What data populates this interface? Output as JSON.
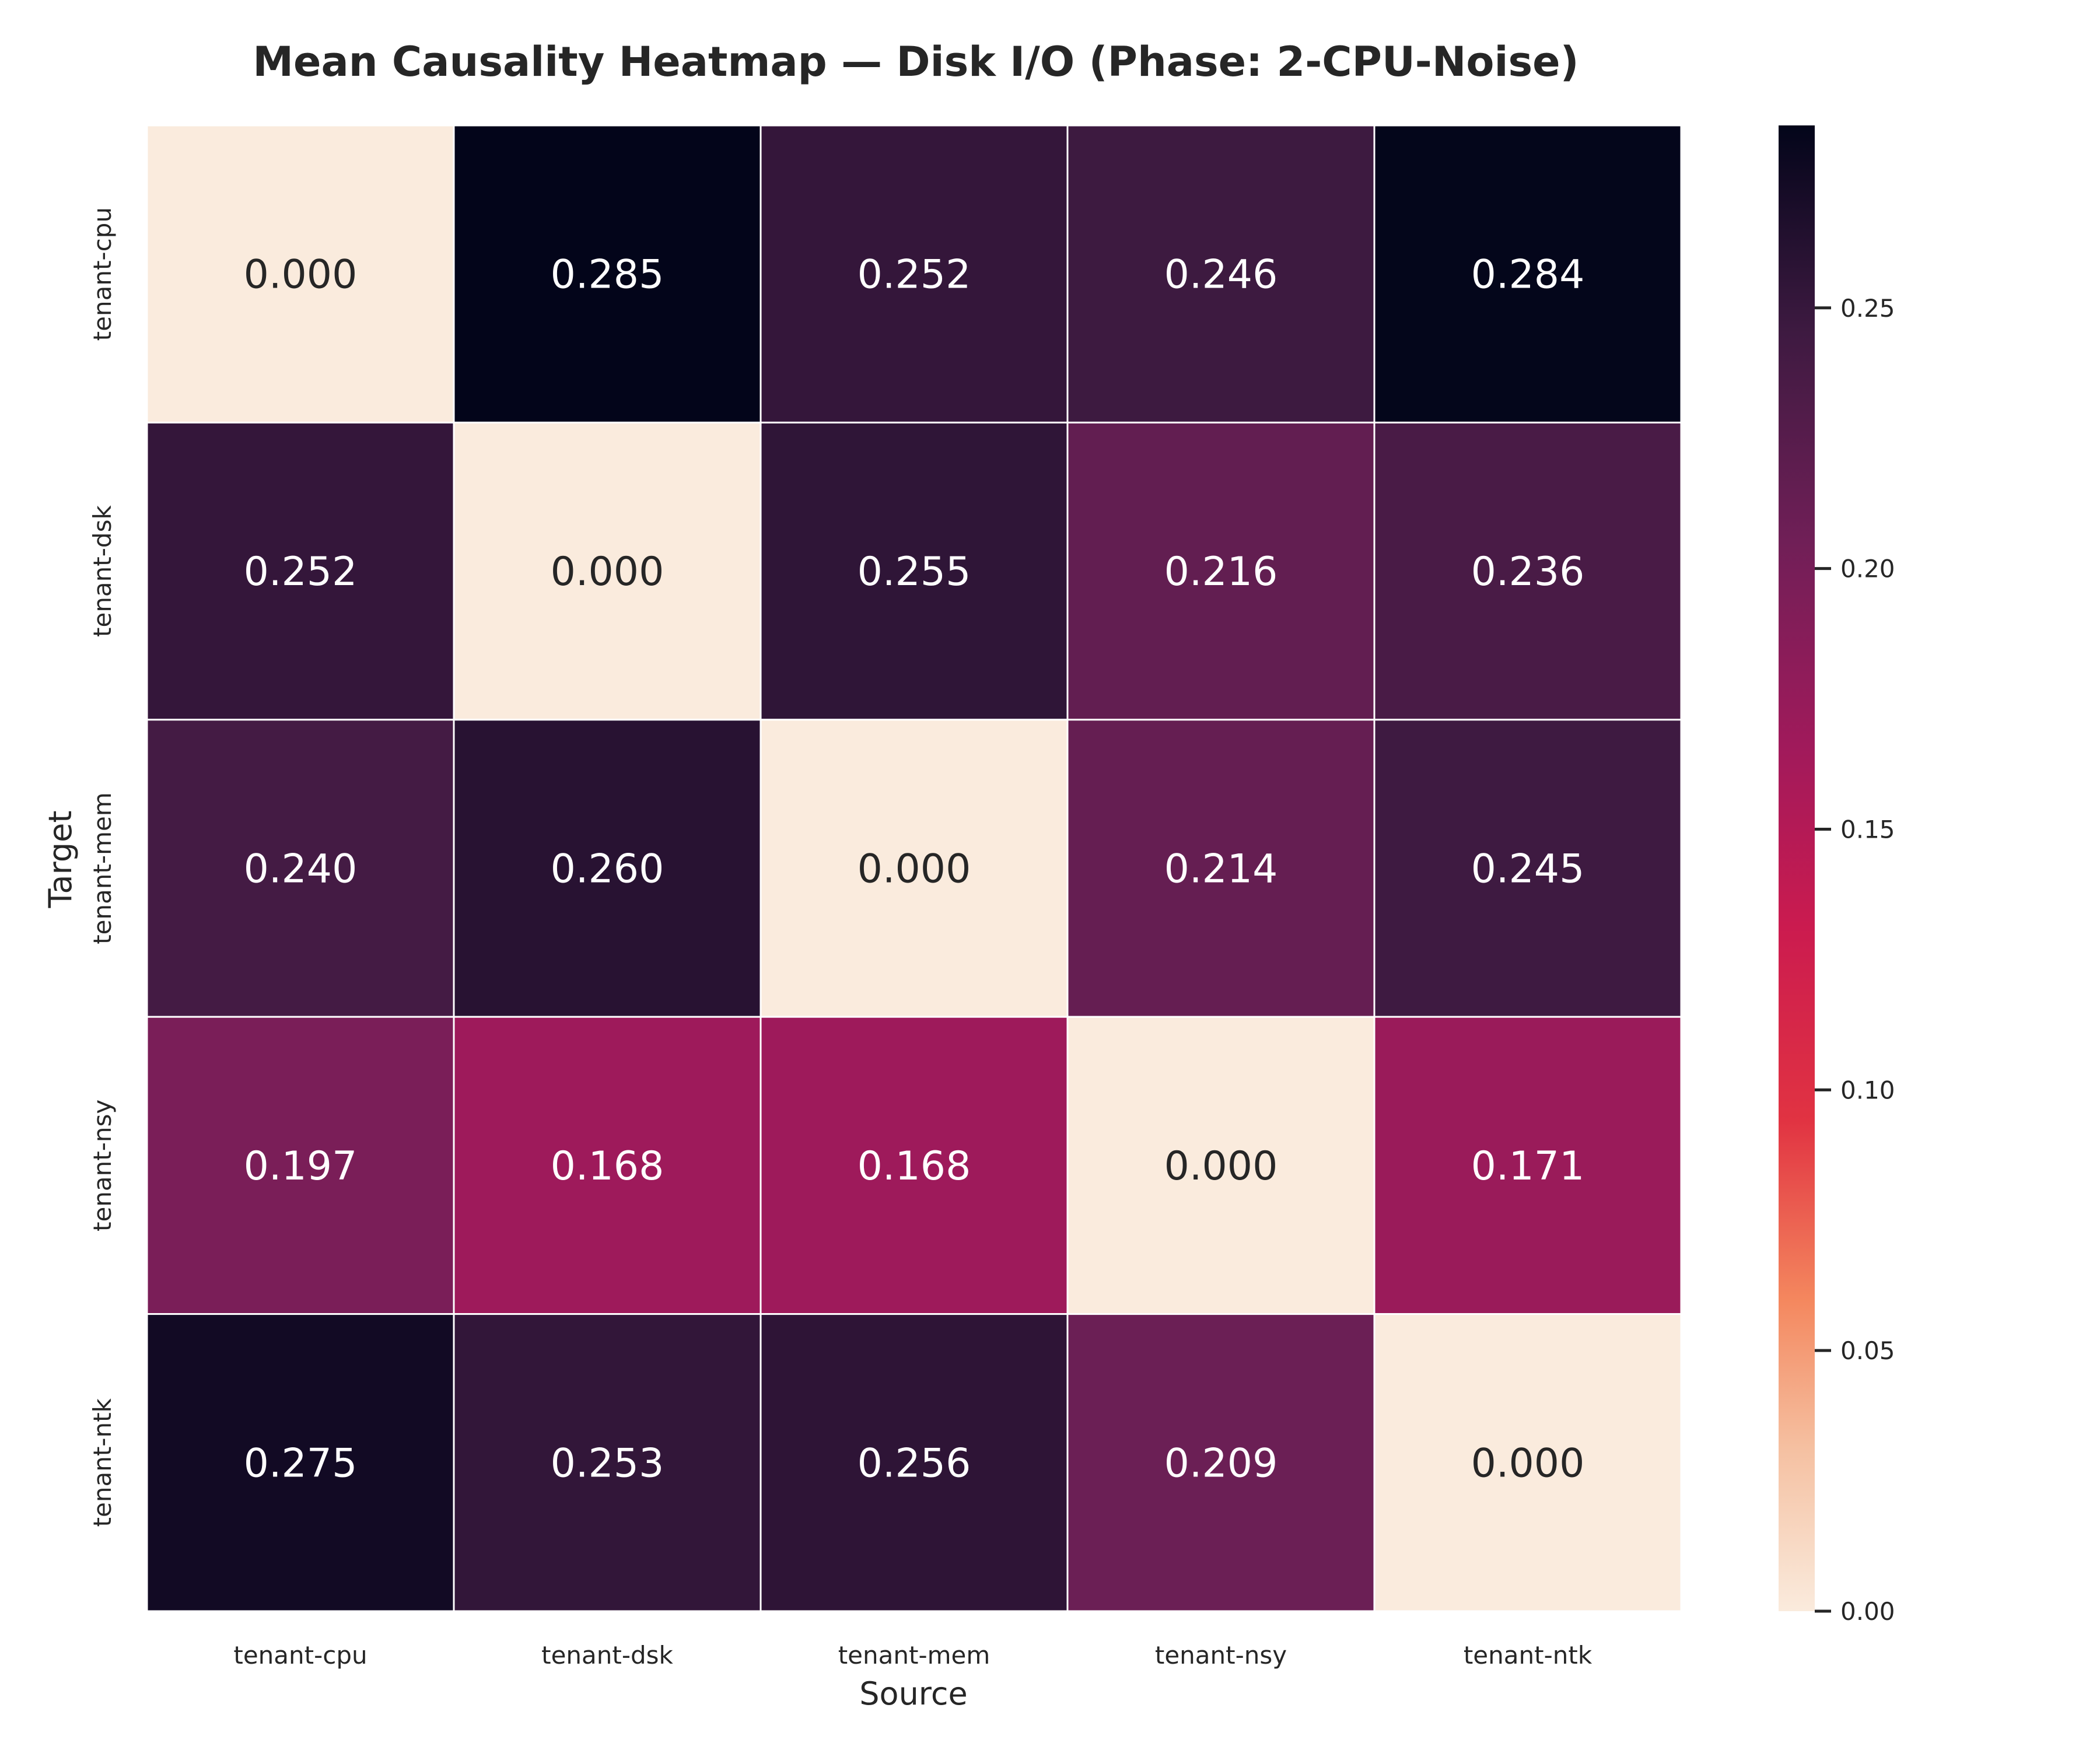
{
  "chart_data": {
    "type": "heatmap",
    "title": "Mean Causality Heatmap — Disk I/O (Phase: 2-CPU-Noise)",
    "xlabel": "Source",
    "ylabel": "Target",
    "x_categories": [
      "tenant-cpu",
      "tenant-dsk",
      "tenant-mem",
      "tenant-nsy",
      "tenant-ntk"
    ],
    "y_categories": [
      "tenant-cpu",
      "tenant-dsk",
      "tenant-mem",
      "tenant-nsy",
      "tenant-ntk"
    ],
    "values": [
      [
        0.0,
        0.285,
        0.252,
        0.246,
        0.284
      ],
      [
        0.252,
        0.0,
        0.255,
        0.216,
        0.236
      ],
      [
        0.24,
        0.26,
        0.0,
        0.214,
        0.245
      ],
      [
        0.197,
        0.168,
        0.168,
        0.0,
        0.171
      ],
      [
        0.275,
        0.253,
        0.256,
        0.209,
        0.0
      ]
    ],
    "value_format": "3-decimals",
    "colormap": "rocket_r",
    "colorbar": {
      "range": [
        0,
        0.285
      ],
      "ticks": [
        0.0,
        0.05,
        0.1,
        0.15,
        0.2,
        0.25
      ],
      "tick_labels": [
        "0.00",
        "0.05",
        "0.10",
        "0.15",
        "0.20",
        "0.25"
      ]
    },
    "grid": false,
    "cell_borders": "#ffffff"
  }
}
